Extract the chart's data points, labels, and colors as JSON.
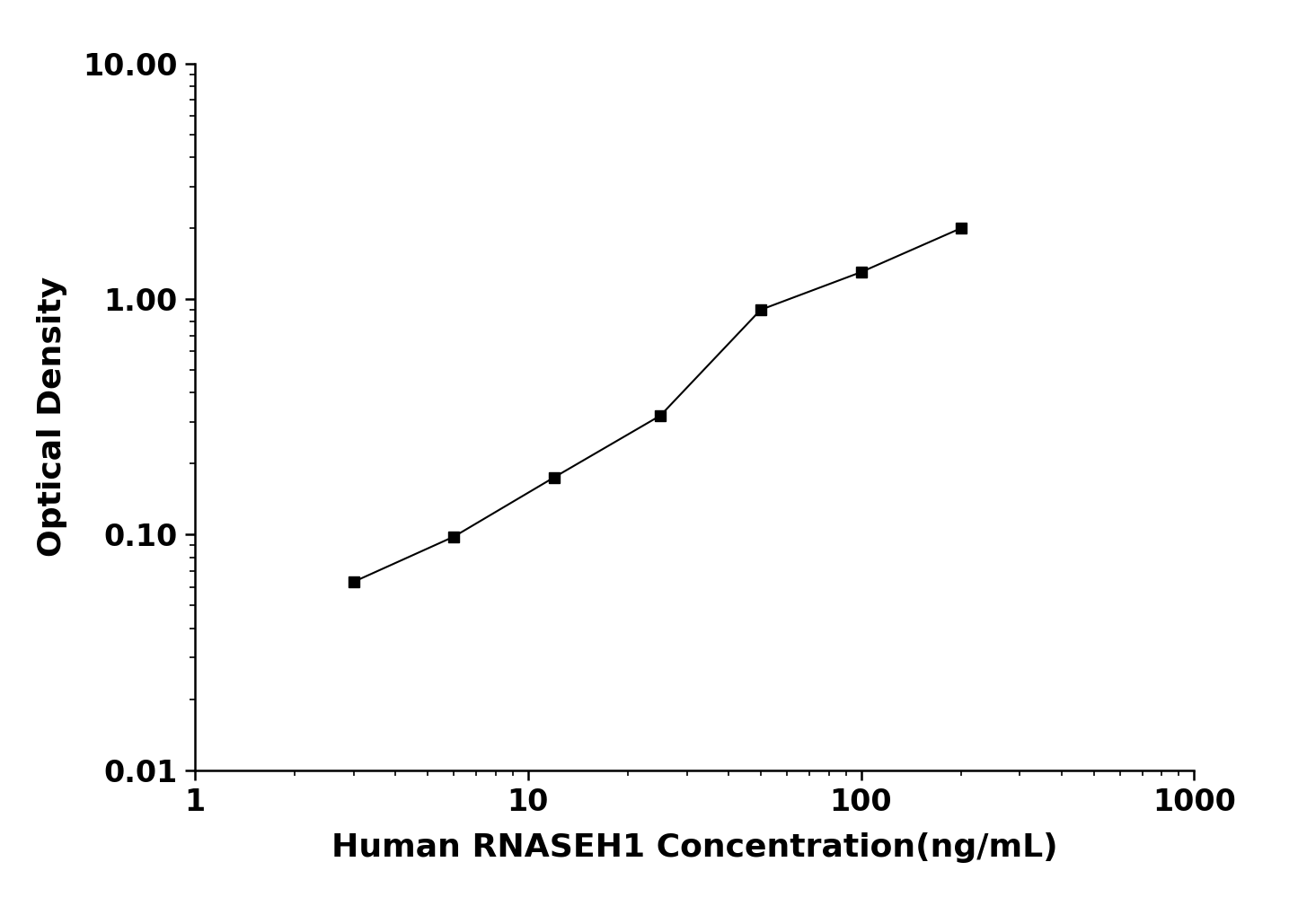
{
  "x": [
    3.0,
    6.0,
    12.0,
    25.0,
    50.0,
    100.0,
    200.0
  ],
  "y": [
    0.063,
    0.098,
    0.175,
    0.32,
    0.9,
    1.3,
    2.0
  ],
  "xlabel": "Human RNASEH1 Concentration(ng/mL)",
  "ylabel": "Optical Density",
  "xlim_log": [
    1,
    1000
  ],
  "ylim_log": [
    0.01,
    10
  ],
  "xticks": [
    1,
    10,
    100,
    1000
  ],
  "yticks": [
    0.01,
    0.1,
    1,
    10
  ],
  "marker": "s",
  "marker_color": "#000000",
  "line_color": "#000000",
  "marker_size": 9,
  "line_width": 1.5,
  "label_fontsize": 26,
  "tick_fontsize": 24,
  "background_color": "#ffffff",
  "spine_linewidth": 1.8
}
